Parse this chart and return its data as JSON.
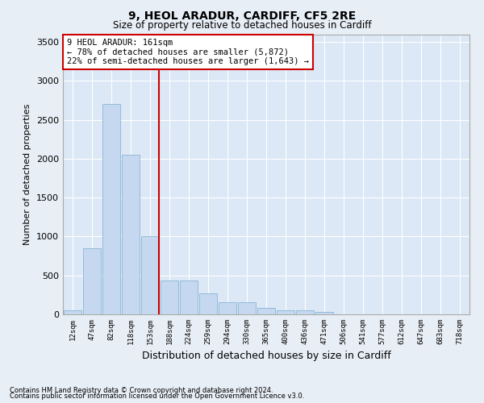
{
  "title1": "9, HEOL ARADUR, CARDIFF, CF5 2RE",
  "title2": "Size of property relative to detached houses in Cardiff",
  "xlabel": "Distribution of detached houses by size in Cardiff",
  "ylabel": "Number of detached properties",
  "categories": [
    "12sqm",
    "47sqm",
    "82sqm",
    "118sqm",
    "153sqm",
    "188sqm",
    "224sqm",
    "259sqm",
    "294sqm",
    "330sqm",
    "365sqm",
    "400sqm",
    "436sqm",
    "471sqm",
    "506sqm",
    "541sqm",
    "577sqm",
    "612sqm",
    "647sqm",
    "683sqm",
    "718sqm"
  ],
  "values": [
    50,
    850,
    2700,
    2050,
    1000,
    430,
    430,
    270,
    160,
    160,
    80,
    50,
    50,
    30,
    0,
    0,
    0,
    0,
    0,
    0,
    0
  ],
  "bar_color": "#c5d8ef",
  "bar_edge_color": "#7aadcf",
  "vline_color": "#cc0000",
  "annotation_text": "9 HEOL ARADUR: 161sqm\n← 78% of detached houses are smaller (5,872)\n22% of semi-detached houses are larger (1,643) →",
  "annotation_box_color": "#cc0000",
  "ylim": [
    0,
    3600
  ],
  "yticks": [
    0,
    500,
    1000,
    1500,
    2000,
    2500,
    3000,
    3500
  ],
  "bg_color": "#e8eef5",
  "plot_bg_color": "#dce8f5",
  "grid_color": "#ffffff",
  "footnote1": "Contains HM Land Registry data © Crown copyright and database right 2024.",
  "footnote2": "Contains public sector information licensed under the Open Government Licence v3.0."
}
